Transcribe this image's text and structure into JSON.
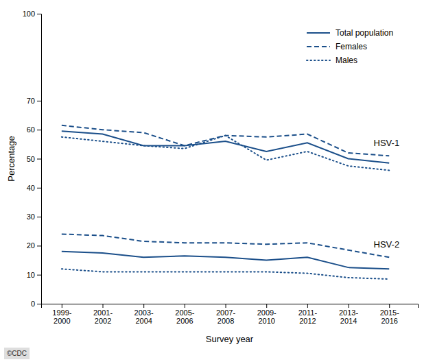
{
  "chart_data": {
    "type": "line",
    "categories": [
      "1999-\n2000",
      "2001-\n2002",
      "2003-\n2004",
      "2005-\n2006",
      "2007-\n2008",
      "2009-\n2010",
      "2011-\n2012",
      "2013-\n2014",
      "2015-\n2016"
    ],
    "series": [
      {
        "name": "Total population",
        "color": "#1B4F8A",
        "line_style": "solid",
        "values": [
          59.5,
          58.5,
          54.5,
          54.5,
          56.0,
          52.5,
          55.5,
          50.0,
          48.5
        ]
      },
      {
        "name": "Females",
        "color": "#1B4F8A",
        "line_style": "dashed",
        "values": [
          61.5,
          60.0,
          59.0,
          54.5,
          58.0,
          57.5,
          58.5,
          52.0,
          51.0
        ]
      },
      {
        "name": "Males",
        "color": "#1B4F8A",
        "line_style": "dotted",
        "values": [
          57.5,
          56.0,
          54.5,
          53.5,
          58.0,
          49.5,
          52.5,
          47.5,
          46.0
        ]
      },
      {
        "color": "#1B4F8A",
        "line_style": "solid",
        "values": [
          18.0,
          17.5,
          16.0,
          16.5,
          16.0,
          15.0,
          16.0,
          12.5,
          12.0
        ]
      },
      {
        "color": "#1B4F8A",
        "line_style": "dashed",
        "values": [
          24.0,
          23.5,
          21.5,
          21.0,
          21.0,
          20.5,
          21.0,
          18.5,
          16.0
        ]
      },
      {
        "color": "#1B4F8A",
        "line_style": "dotted",
        "values": [
          12.0,
          11.0,
          11.0,
          11.0,
          11.0,
          11.0,
          10.5,
          9.0,
          8.5
        ]
      }
    ],
    "x_label": "Survey year",
    "y_label": "Percentage",
    "ylim": [
      0,
      100
    ],
    "yticks": [
      0,
      10,
      20,
      30,
      40,
      50,
      60,
      70,
      100
    ],
    "annotations": [
      {
        "text": "HSV-1",
        "x": 7.62,
        "y": 55.5
      },
      {
        "text": "HSV-2",
        "x": 7.62,
        "y": 20.5
      }
    ],
    "caption": "©CDC",
    "legend": "upper right",
    "grid": false
  }
}
